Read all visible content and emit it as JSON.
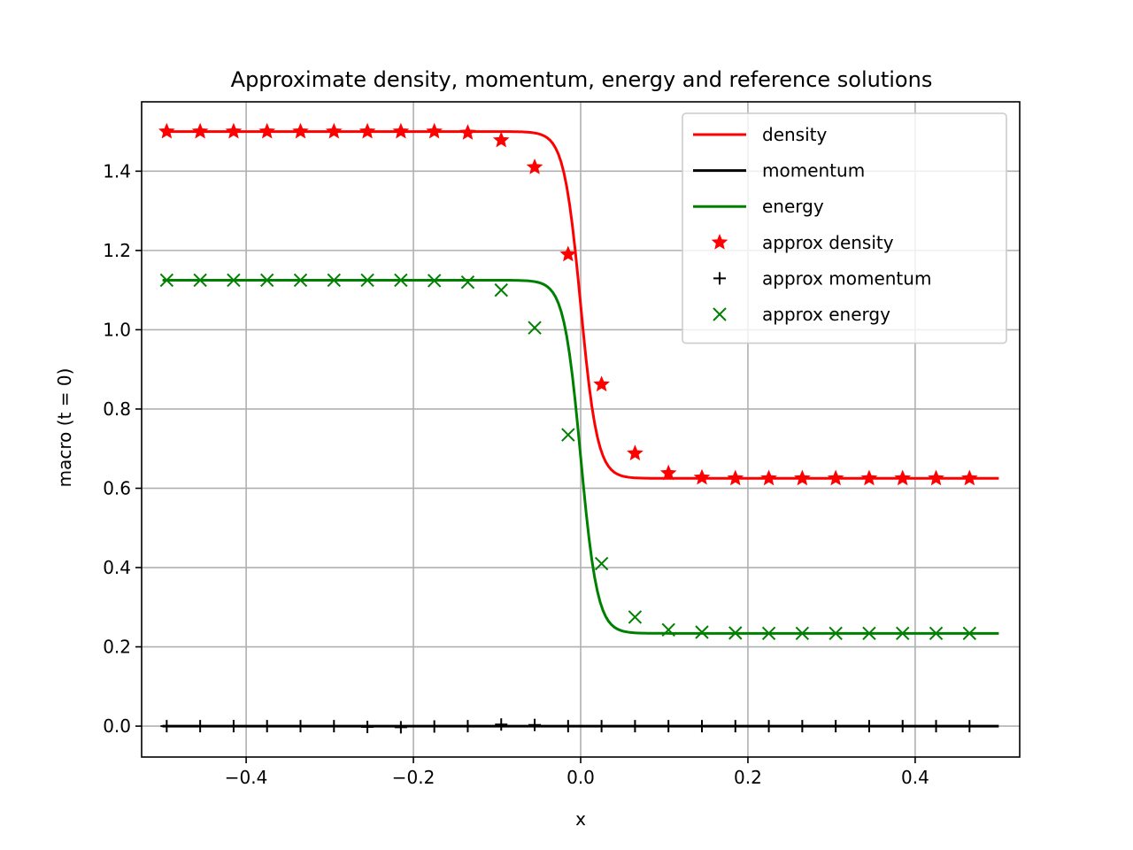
{
  "chart_data": {
    "type": "line",
    "title": "Approximate density, momentum, energy and reference solutions",
    "xlabel": "x",
    "ylabel": "macro (t = 0)",
    "xlim": [
      -0.525,
      0.525
    ],
    "ylim": [
      -0.078,
      1.575
    ],
    "xticks": [
      -0.4,
      -0.2,
      0.0,
      0.2,
      0.4
    ],
    "xtick_labels": [
      "−0.4",
      "−0.2",
      "0.0",
      "0.2",
      "0.4"
    ],
    "yticks": [
      0.0,
      0.2,
      0.4,
      0.6,
      0.8,
      1.0,
      1.2,
      1.4
    ],
    "ytick_labels": [
      "0.0",
      "0.2",
      "0.4",
      "0.6",
      "0.8",
      "1.0",
      "1.2",
      "1.4"
    ],
    "grid": true,
    "legend_position": "top-right",
    "lines": [
      {
        "name": "density",
        "color": "#ff0000",
        "left": 1.5,
        "right": 0.625,
        "width": 0.02
      },
      {
        "name": "momentum",
        "color": "#000000",
        "left": 0.0,
        "right": 0.0,
        "width": 0.02
      },
      {
        "name": "energy",
        "color": "#008000",
        "left": 1.125,
        "right": 0.234,
        "width": 0.02
      }
    ],
    "markers": [
      {
        "name": "approx density",
        "color": "#ff0000",
        "marker": "star",
        "x": [
          -0.495,
          -0.455,
          -0.415,
          -0.375,
          -0.335,
          -0.295,
          -0.255,
          -0.215,
          -0.175,
          -0.135,
          -0.095,
          -0.055,
          -0.015,
          0.025,
          0.065,
          0.105,
          0.145,
          0.185,
          0.225,
          0.265,
          0.305,
          0.345,
          0.385,
          0.425,
          0.465
        ],
        "y": [
          1.5,
          1.5,
          1.5,
          1.5,
          1.5,
          1.5,
          1.5,
          1.5,
          1.5,
          1.497,
          1.478,
          1.41,
          1.19,
          0.862,
          0.688,
          0.638,
          0.627,
          0.625,
          0.625,
          0.625,
          0.625,
          0.625,
          0.625,
          0.625,
          0.625
        ]
      },
      {
        "name": "approx momentum",
        "color": "#000000",
        "marker": "plus",
        "x": [
          -0.495,
          -0.455,
          -0.415,
          -0.375,
          -0.335,
          -0.295,
          -0.255,
          -0.215,
          -0.175,
          -0.135,
          -0.095,
          -0.055,
          -0.015,
          0.025,
          0.065,
          0.105,
          0.145,
          0.185,
          0.225,
          0.265,
          0.305,
          0.345,
          0.385,
          0.425,
          0.465
        ],
        "y": [
          0.0,
          0.0,
          0.0,
          0.0,
          0.0,
          0.0,
          -0.002,
          -0.003,
          -0.001,
          0.0,
          0.004,
          0.003,
          0.0,
          0.0,
          0.0,
          0.0,
          0.0,
          0.0,
          0.0,
          0.0,
          0.0,
          0.0,
          0.0,
          0.0,
          0.0
        ]
      },
      {
        "name": "approx energy",
        "color": "#008000",
        "marker": "x",
        "x": [
          -0.495,
          -0.455,
          -0.415,
          -0.375,
          -0.335,
          -0.295,
          -0.255,
          -0.215,
          -0.175,
          -0.135,
          -0.095,
          -0.055,
          -0.015,
          0.025,
          0.065,
          0.105,
          0.145,
          0.185,
          0.225,
          0.265,
          0.305,
          0.345,
          0.385,
          0.425,
          0.465
        ],
        "y": [
          1.125,
          1.125,
          1.125,
          1.125,
          1.125,
          1.125,
          1.125,
          1.125,
          1.124,
          1.12,
          1.1,
          1.005,
          0.735,
          0.41,
          0.275,
          0.243,
          0.237,
          0.235,
          0.234,
          0.234,
          0.234,
          0.234,
          0.234,
          0.234,
          0.234
        ]
      }
    ]
  }
}
